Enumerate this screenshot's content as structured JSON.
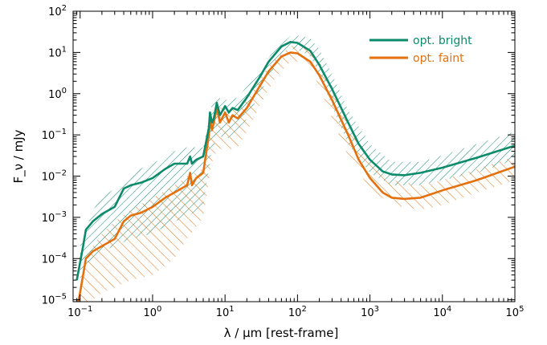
{
  "chart_data": {
    "type": "line",
    "title": "",
    "xlabel": "λ / μm [rest-frame]",
    "ylabel": "F_ν / mJy",
    "xscale": "log",
    "yscale": "log",
    "xlim": [
      0.08,
      100000
    ],
    "ylim": [
      9e-06,
      100
    ],
    "x_ticks": [
      {
        "value": 0.1,
        "base": "10",
        "exp": "−1"
      },
      {
        "value": 1,
        "base": "10",
        "exp": "0"
      },
      {
        "value": 10,
        "base": "10",
        "exp": "1"
      },
      {
        "value": 100,
        "base": "10",
        "exp": "2"
      },
      {
        "value": 1000,
        "base": "10",
        "exp": "3"
      },
      {
        "value": 10000,
        "base": "10",
        "exp": "4"
      },
      {
        "value": 100000,
        "base": "10",
        "exp": "5"
      }
    ],
    "y_ticks": [
      {
        "value": 1e-05,
        "base": "10",
        "exp": "−5"
      },
      {
        "value": 0.0001,
        "base": "10",
        "exp": "−4"
      },
      {
        "value": 0.001,
        "base": "10",
        "exp": "−3"
      },
      {
        "value": 0.01,
        "base": "10",
        "exp": "−2"
      },
      {
        "value": 0.1,
        "base": "10",
        "exp": "−1"
      },
      {
        "value": 1,
        "base": "10",
        "exp": "0"
      },
      {
        "value": 10,
        "base": "10",
        "exp": "1"
      },
      {
        "value": 100,
        "base": "10",
        "exp": "2"
      }
    ],
    "grid": false,
    "legend_position": "top-right",
    "series": [
      {
        "name": "opt. bright",
        "color": "#0c8a6c",
        "x": [
          0.09,
          0.1,
          0.11,
          0.12,
          0.15,
          0.2,
          0.3,
          0.4,
          0.5,
          0.7,
          1,
          1.5,
          2,
          2.5,
          3,
          3.3,
          3.5,
          4,
          5,
          6,
          6.2,
          6.6,
          7,
          7.7,
          8.5,
          10,
          11.3,
          12.7,
          15,
          20,
          30,
          40,
          60,
          80,
          100,
          150,
          200,
          300,
          500,
          700,
          1000,
          1500,
          2000,
          3000,
          5000,
          10000,
          30000,
          100000
        ],
        "y": [
          3e-05,
          8e-05,
          0.0002,
          0.0005,
          0.0008,
          0.0012,
          0.0018,
          0.005,
          0.006,
          0.007,
          0.009,
          0.015,
          0.02,
          0.02,
          0.02,
          0.03,
          0.02,
          0.025,
          0.03,
          0.15,
          0.35,
          0.2,
          0.25,
          0.6,
          0.3,
          0.5,
          0.35,
          0.45,
          0.4,
          0.8,
          2.5,
          6,
          14,
          18,
          17,
          11,
          5,
          1.3,
          0.2,
          0.06,
          0.025,
          0.013,
          0.011,
          0.0105,
          0.012,
          0.016,
          0.028,
          0.055
        ]
      },
      {
        "name": "opt. faint",
        "color": "#e4700d",
        "x": [
          0.09,
          0.1,
          0.11,
          0.12,
          0.15,
          0.2,
          0.3,
          0.4,
          0.5,
          0.7,
          1,
          1.5,
          2,
          2.5,
          3,
          3.3,
          3.5,
          4,
          5,
          6,
          6.2,
          6.6,
          7,
          7.7,
          8.5,
          10,
          11.3,
          12.7,
          15,
          20,
          30,
          40,
          60,
          80,
          100,
          150,
          200,
          300,
          500,
          700,
          1000,
          1500,
          2000,
          3000,
          5000,
          10000,
          30000,
          100000
        ],
        "y": [
          6e-06,
          1.5e-05,
          4e-05,
          0.0001,
          0.00015,
          0.0002,
          0.0003,
          0.0008,
          0.0011,
          0.0013,
          0.0018,
          0.003,
          0.004,
          0.005,
          0.006,
          0.012,
          0.006,
          0.009,
          0.012,
          0.1,
          0.25,
          0.13,
          0.2,
          0.45,
          0.2,
          0.35,
          0.2,
          0.3,
          0.25,
          0.45,
          1.5,
          3.5,
          8,
          10,
          9.5,
          6,
          2.8,
          0.7,
          0.1,
          0.025,
          0.009,
          0.004,
          0.003,
          0.0028,
          0.003,
          0.0045,
          0.008,
          0.017
        ]
      }
    ],
    "shaded_bands": [
      {
        "series": "opt. bright",
        "color": "#0c8a6c",
        "x": [
          0.1,
          0.15,
          0.2,
          0.3,
          0.5,
          1,
          2,
          3,
          5,
          6.5,
          8,
          10,
          15,
          20,
          30,
          50,
          80,
          100,
          150,
          200,
          300,
          500,
          1000,
          2000,
          5000,
          10000,
          30000,
          100000
        ],
        "upper": [
          0.0002,
          0.0015,
          0.003,
          0.005,
          0.012,
          0.02,
          0.04,
          0.05,
          0.05,
          0.5,
          0.8,
          0.7,
          0.8,
          1.5,
          4,
          12,
          25,
          26,
          22,
          12,
          3,
          0.4,
          0.06,
          0.022,
          0.022,
          0.032,
          0.06,
          0.12
        ],
        "lower": [
          3e-05,
          0.0001,
          0.00015,
          0.0002,
          0.0003,
          0.0004,
          0.0008,
          0.001,
          0.002,
          0.04,
          0.1,
          0.08,
          0.1,
          0.25,
          1,
          5,
          12,
          12,
          8,
          3,
          0.5,
          0.06,
          0.012,
          0.006,
          0.006,
          0.008,
          0.012,
          0.025
        ]
      },
      {
        "series": "opt. faint",
        "color": "#e4700d",
        "x": [
          0.1,
          0.15,
          0.2,
          0.3,
          0.5,
          1,
          2,
          3,
          5,
          6.5,
          8,
          10,
          15,
          20,
          30,
          50,
          80,
          100,
          150,
          200,
          300,
          500,
          1000,
          2000,
          5000,
          10000,
          30000,
          100000
        ],
        "upper": [
          3e-05,
          0.0002,
          0.0004,
          0.0008,
          0.0015,
          0.003,
          0.006,
          0.01,
          0.015,
          0.3,
          0.5,
          0.4,
          0.45,
          0.8,
          2.5,
          7,
          14,
          15,
          12,
          6,
          1.5,
          0.2,
          0.025,
          0.008,
          0.006,
          0.008,
          0.015,
          0.03
        ],
        "lower": [
          6e-06,
          1e-05,
          1.5e-05,
          2e-05,
          3e-05,
          4e-05,
          0.0001,
          0.0003,
          0.001,
          0.02,
          0.05,
          0.04,
          0.05,
          0.12,
          0.5,
          2.5,
          6,
          6,
          4,
          1.5,
          0.25,
          0.03,
          0.005,
          0.002,
          0.0015,
          0.002,
          0.004,
          0.008
        ]
      }
    ]
  }
}
